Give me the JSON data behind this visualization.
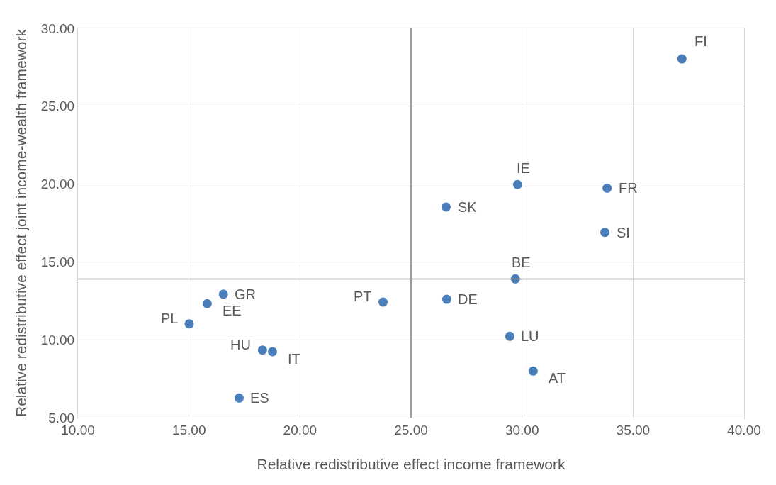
{
  "chart_data": {
    "type": "scatter",
    "xlabel": "Relative redistributive effect income framework",
    "ylabel": "Relative redistributive effect joint income-wealth framework",
    "series": [
      {
        "color": "#4a7ebb",
        "x": [
          37.2,
          29.8,
          33.83,
          26.58,
          33.73,
          29.7,
          23.74,
          26.61,
          16.55,
          15.82,
          15.01,
          29.45,
          18.31,
          18.76,
          30.5,
          17.26
        ],
        "values": [
          28.04,
          19.97,
          19.74,
          18.53,
          16.9,
          13.91,
          12.42,
          12.6,
          12.93,
          12.32,
          11.02,
          10.22,
          9.34,
          9.24,
          7.99,
          6.26
        ]
      }
    ],
    "annotations": [
      {
        "text": "FI",
        "x": 37.2,
        "y": 28.04
      },
      {
        "text": "IE",
        "x": 29.8,
        "y": 19.97
      },
      {
        "text": "FR",
        "x": 33.83,
        "y": 19.74
      },
      {
        "text": "SK",
        "x": 26.58,
        "y": 18.53
      },
      {
        "text": "SI",
        "x": 33.73,
        "y": 16.9
      },
      {
        "text": "BE",
        "x": 29.7,
        "y": 13.91
      },
      {
        "text": "PT",
        "x": 23.74,
        "y": 12.42
      },
      {
        "text": "DE",
        "x": 26.61,
        "y": 12.6
      },
      {
        "text": "GR",
        "x": 16.55,
        "y": 12.93
      },
      {
        "text": "EE",
        "x": 15.82,
        "y": 12.32
      },
      {
        "text": "PL",
        "x": 15.01,
        "y": 11.02
      },
      {
        "text": "LU",
        "x": 29.45,
        "y": 10.22
      },
      {
        "text": "HU",
        "x": 18.31,
        "y": 9.34
      },
      {
        "text": "IT",
        "x": 18.76,
        "y": 9.24
      },
      {
        "text": "AT",
        "x": 30.5,
        "y": 7.99
      },
      {
        "text": "ES",
        "x": 17.26,
        "y": 6.26
      }
    ],
    "ref_lines": [
      {
        "axis": "x",
        "value": 25,
        "color": "#808080"
      },
      {
        "axis": "y",
        "value": 13.9,
        "color": "#808080"
      }
    ],
    "xlim": [
      10,
      40
    ],
    "ylim": [
      5,
      30
    ],
    "xticks": [
      {
        "value": 10,
        "label": "10.00"
      },
      {
        "value": 15,
        "label": "15.00"
      },
      {
        "value": 20,
        "label": "20.00"
      },
      {
        "value": 25,
        "label": "25.00"
      },
      {
        "value": 30,
        "label": "30.00"
      },
      {
        "value": 35,
        "label": "35.00"
      },
      {
        "value": 40,
        "label": "40.00"
      }
    ],
    "yticks": [
      {
        "value": 5,
        "label": "5.00"
      },
      {
        "value": 10,
        "label": "10.00"
      },
      {
        "value": 15,
        "label": "15.00"
      },
      {
        "value": 20,
        "label": "20.00"
      },
      {
        "value": 25,
        "label": "25.00"
      },
      {
        "value": 30,
        "label": "30.00"
      }
    ],
    "grid": true,
    "marker": "circle"
  }
}
